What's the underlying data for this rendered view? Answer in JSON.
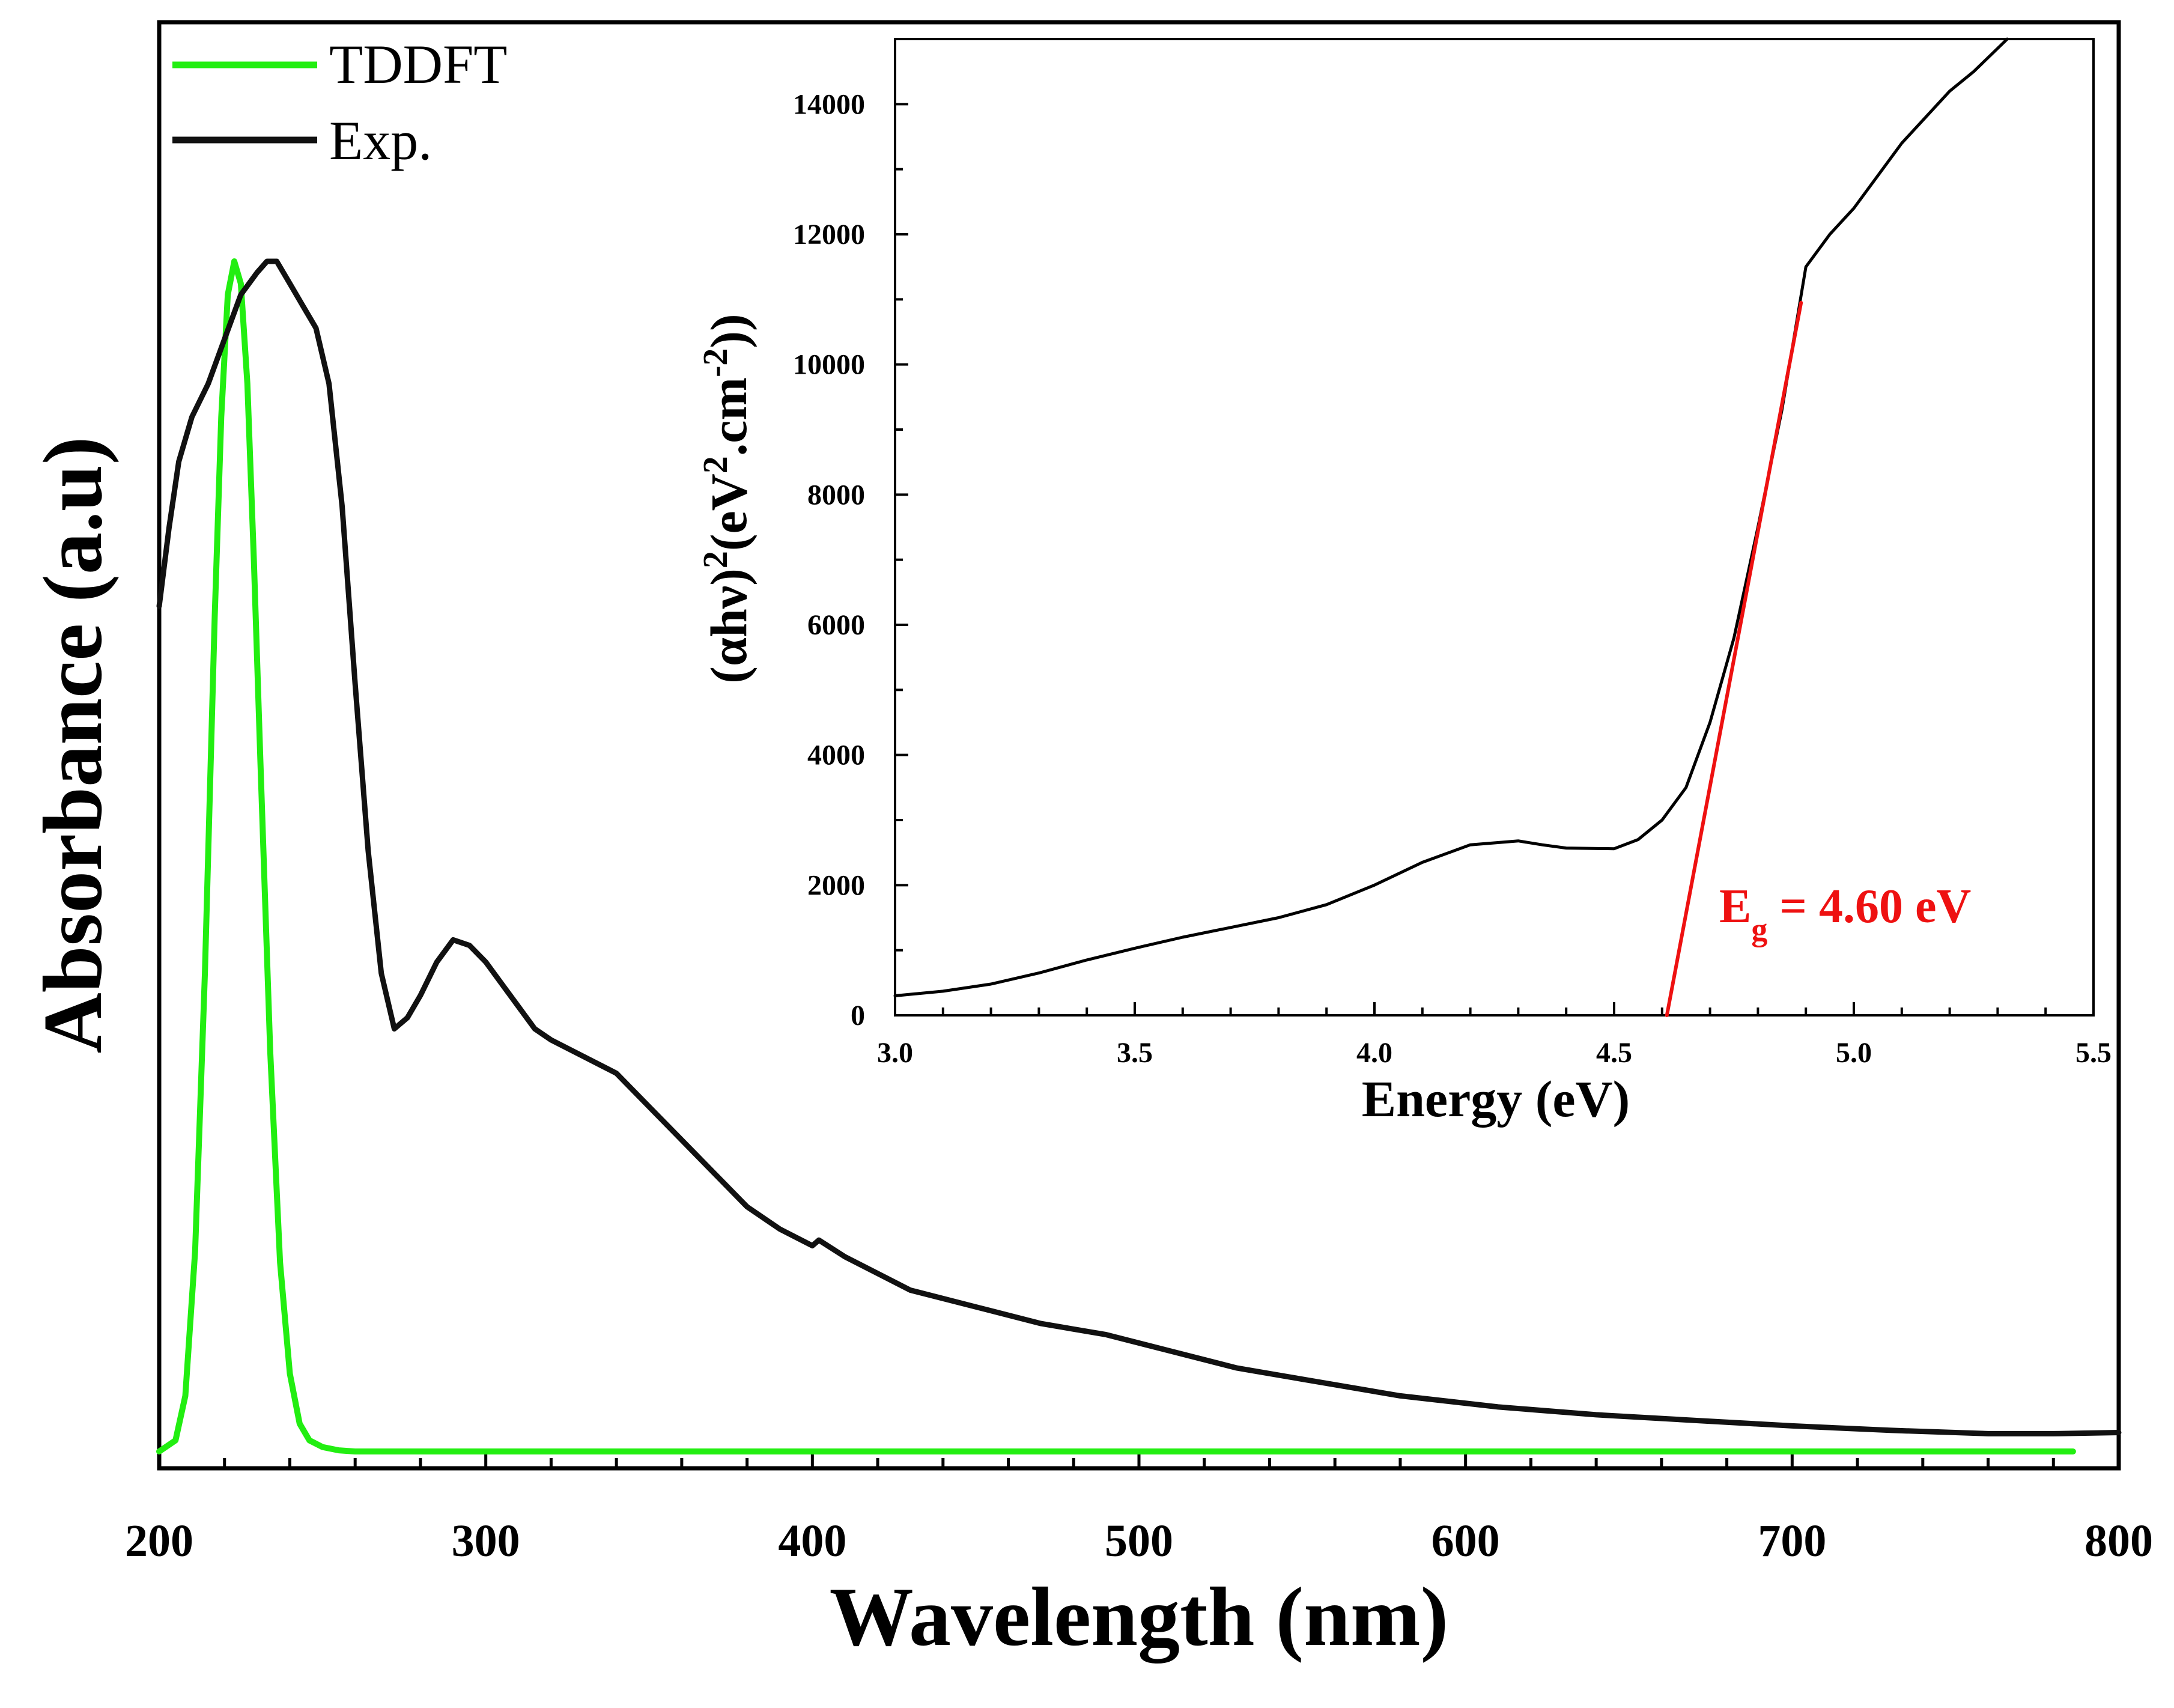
{
  "chart_data": [
    {
      "id": "main",
      "type": "line",
      "xlabel": "Wavelength (nm)",
      "ylabel": "Absorbance (a.u)",
      "xlim": [
        200,
        800
      ],
      "ylim": [
        0,
        1.07
      ],
      "xticks": [
        200,
        300,
        400,
        500,
        600,
        700,
        800
      ],
      "xtick_labels": [
        "200",
        "300",
        "400",
        "500",
        "600",
        "700",
        "800"
      ],
      "y_tick_labels_shown": false,
      "legend_position": "top-left",
      "series": [
        {
          "name": "TDDFT",
          "color": "#22ee11",
          "x": [
            200,
            205,
            208,
            211,
            214,
            217,
            219,
            221,
            223,
            225,
            227,
            229,
            231,
            234,
            237,
            240,
            243,
            246,
            250,
            255,
            260,
            300,
            400,
            500,
            600,
            700,
            786
          ],
          "y": [
            0.0,
            0.01,
            0.05,
            0.18,
            0.43,
            0.75,
            0.93,
            1.04,
            1.07,
            1.05,
            0.96,
            0.8,
            0.62,
            0.36,
            0.17,
            0.07,
            0.025,
            0.01,
            0.004,
            0.001,
            0.0,
            0.0,
            0.0,
            0.0,
            0.0,
            0.0,
            0.0
          ]
        },
        {
          "name": "Exp.",
          "color": "#111111",
          "x": [
            200,
            203,
            206,
            210,
            215,
            220,
            225,
            230,
            233,
            236,
            240,
            244,
            248,
            252,
            256,
            260,
            264,
            268,
            272,
            276,
            280,
            285,
            290,
            295,
            300,
            305,
            310,
            315,
            320,
            330,
            340,
            350,
            360,
            370,
            380,
            390,
            400,
            402,
            410,
            420,
            430,
            450,
            470,
            490,
            510,
            530,
            550,
            580,
            610,
            640,
            670,
            700,
            730,
            760,
            780,
            800
          ],
          "y": [
            0.76,
            0.83,
            0.89,
            0.93,
            0.96,
            1.0,
            1.04,
            1.06,
            1.07,
            1.07,
            1.05,
            1.03,
            1.01,
            0.96,
            0.85,
            0.69,
            0.54,
            0.43,
            0.38,
            0.39,
            0.41,
            0.44,
            0.46,
            0.455,
            0.44,
            0.42,
            0.4,
            0.38,
            0.37,
            0.355,
            0.34,
            0.31,
            0.28,
            0.25,
            0.22,
            0.2,
            0.185,
            0.19,
            0.175,
            0.16,
            0.145,
            0.13,
            0.115,
            0.105,
            0.09,
            0.075,
            0.065,
            0.05,
            0.04,
            0.033,
            0.028,
            0.023,
            0.019,
            0.016,
            0.016,
            0.017
          ]
        }
      ]
    },
    {
      "id": "inset",
      "type": "line",
      "xlabel": "Energy (eV)",
      "ylabel": "(αhν)²(eV².cm⁻²))",
      "ylabel_parts": {
        "base1": "(αhν)",
        "sup1": "2",
        "base2": "(eV",
        "sup2": "2",
        "base3": ".cm",
        "sup3": "-2",
        "base4": "))"
      },
      "xlim": [
        3.0,
        5.5
      ],
      "ylim": [
        0,
        15000
      ],
      "xticks": [
        3.0,
        3.5,
        4.0,
        4.5,
        5.0,
        5.5
      ],
      "xtick_labels": [
        "3.0",
        "3.5",
        "4.0",
        "4.5",
        "5.0",
        "5.5"
      ],
      "yticks": [
        0,
        2000,
        4000,
        6000,
        8000,
        10000,
        12000,
        14000
      ],
      "ytick_labels": [
        "0",
        "2000",
        "4000",
        "6000",
        "8000",
        "10000",
        "12000",
        "14000"
      ],
      "series": [
        {
          "name": "data",
          "color": "#000000",
          "x": [
            3.0,
            3.1,
            3.2,
            3.3,
            3.4,
            3.5,
            3.6,
            3.7,
            3.8,
            3.9,
            4.0,
            4.1,
            4.2,
            4.3,
            4.35,
            4.4,
            4.5,
            4.55,
            4.6,
            4.65,
            4.7,
            4.75,
            4.8,
            4.85,
            4.9,
            4.95,
            5.0,
            5.1,
            5.2,
            5.25,
            5.32
          ],
          "y": [
            300,
            370,
            480,
            650,
            850,
            1030,
            1200,
            1350,
            1500,
            1700,
            2000,
            2350,
            2620,
            2680,
            2620,
            2570,
            2560,
            2700,
            3000,
            3500,
            4500,
            5800,
            7500,
            9300,
            11500,
            12000,
            12400,
            13400,
            14200,
            14500,
            15000
          ]
        },
        {
          "name": "linear-fit",
          "color": "#ee1111",
          "x": [
            4.61,
            4.89
          ],
          "y": [
            0,
            10950
          ]
        }
      ],
      "annotation": {
        "base": "E",
        "sub": "g",
        "rest": " = 4.60 eV",
        "color": "#ee1111"
      }
    }
  ]
}
